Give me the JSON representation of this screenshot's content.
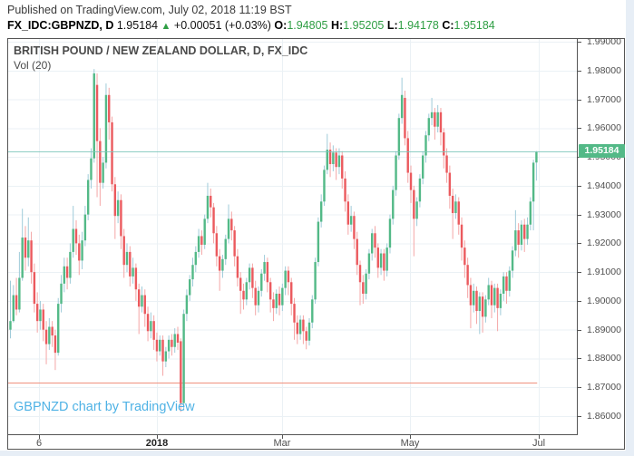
{
  "header": {
    "published_line": "Published on TradingView.com, July 02, 2018 11:19 BST",
    "symbol_title": "FX_IDC:GBPNZD, D",
    "last_price": "1.95184",
    "change_arrow": "▲",
    "change_text": "+0.00051 (+0.03%)",
    "open": {
      "label": "O:",
      "value": "1.94805"
    },
    "high": {
      "label": "H:",
      "value": "1.95205"
    },
    "low": {
      "label": "L:",
      "value": "1.94178"
    },
    "close": {
      "label": "C:",
      "value": "1.95184"
    }
  },
  "chart": {
    "title": "BRITISH POUND / NEW ZEALAND DOLLAR, D, FX_IDC",
    "indicator_label": "Vol (20)",
    "watermark": "GBPNZD chart by TradingView",
    "last_price_label": "1.95184"
  },
  "colors": {
    "up": "#53b987",
    "down": "#eb5a5e",
    "up_wick": "#9fcbd9",
    "down_wick": "#f4a6a6",
    "grid": "#ebf1f5",
    "price_line": "#7cc6ba",
    "support_line": "#f0917e",
    "label_bg": "#53b987",
    "value_green": "#2f9e44",
    "watermark_blue": "#4fb2e5"
  },
  "chart_data": {
    "type": "candlestick",
    "symbol": "GBPNZD",
    "timeframe": "D",
    "title": "BRITISH POUND / NEW ZEALAND DOLLAR, D, FX_IDC",
    "grid": true,
    "y_axis": {
      "side": "right",
      "min": 1.86,
      "max": 1.99,
      "tick_step": 0.01,
      "ticks": [
        {
          "p": 1.99,
          "t": "1.99000"
        },
        {
          "p": 1.98,
          "t": "1.98000"
        },
        {
          "p": 1.97,
          "t": "1.97000"
        },
        {
          "p": 1.96,
          "t": "1.96000"
        },
        {
          "p": 1.95,
          "t": "1.95000"
        },
        {
          "p": 1.94,
          "t": "1.94000"
        },
        {
          "p": 1.93,
          "t": "1.93000"
        },
        {
          "p": 1.92,
          "t": "1.92000"
        },
        {
          "p": 1.91,
          "t": "1.91000"
        },
        {
          "p": 1.9,
          "t": "1.90000"
        },
        {
          "p": 1.89,
          "t": "1.89000"
        },
        {
          "p": 1.88,
          "t": "1.88000"
        },
        {
          "p": 1.87,
          "t": "1.87000"
        },
        {
          "p": 1.86,
          "t": "1.86000"
        }
      ]
    },
    "x_axis": {
      "ticks": [
        {
          "label": "6",
          "i": 9.7,
          "bold": false
        },
        {
          "label": "2018",
          "i": 49.2,
          "bold": true
        },
        {
          "label": "Mar",
          "i": 91.1,
          "bold": false
        },
        {
          "label": "May",
          "i": 133.9,
          "bold": false
        },
        {
          "label": "Jul",
          "i": 177.0,
          "bold": false
        }
      ]
    },
    "levels": {
      "current_price": 1.95184,
      "support_line": {
        "price": 1.8715,
        "start_index": -0.6,
        "end_index": 176.4
      }
    },
    "candles": [
      [
        1.89,
        1.907,
        1.887,
        1.893
      ],
      [
        1.893,
        1.9055,
        1.8925,
        1.902
      ],
      [
        1.902,
        1.908,
        1.895,
        1.897
      ],
      [
        1.897,
        1.917,
        1.896,
        1.908
      ],
      [
        1.908,
        1.932,
        1.907,
        1.922
      ],
      [
        1.922,
        1.926,
        1.9105,
        1.915
      ],
      [
        1.915,
        1.929,
        1.912,
        1.921
      ],
      [
        1.921,
        1.924,
        1.906,
        1.91
      ],
      [
        1.91,
        1.913,
        1.896,
        1.899
      ],
      [
        1.899,
        1.903,
        1.889,
        1.893
      ],
      [
        1.893,
        1.9,
        1.89,
        1.897
      ],
      [
        1.897,
        1.899,
        1.886,
        1.89
      ],
      [
        1.89,
        1.893,
        1.878,
        1.885
      ],
      [
        1.885,
        1.894,
        1.883,
        1.891
      ],
      [
        1.891,
        1.893,
        1.884,
        1.888
      ],
      [
        1.888,
        1.89,
        1.876,
        1.882
      ],
      [
        1.882,
        1.901,
        1.881,
        1.899
      ],
      [
        1.899,
        1.909,
        1.896,
        1.906
      ],
      [
        1.906,
        1.915,
        1.903,
        1.912
      ],
      [
        1.912,
        1.915,
        1.904,
        1.908
      ],
      [
        1.908,
        1.92,
        1.906,
        1.917
      ],
      [
        1.917,
        1.933,
        1.915,
        1.925
      ],
      [
        1.925,
        1.928,
        1.916,
        1.92
      ],
      [
        1.92,
        1.923,
        1.909,
        1.914
      ],
      [
        1.914,
        1.924,
        1.911,
        1.921
      ],
      [
        1.921,
        1.933,
        1.919,
        1.93
      ],
      [
        1.93,
        1.944,
        1.928,
        1.942
      ],
      [
        1.942,
        1.953,
        1.939,
        1.9495
      ],
      [
        1.9495,
        1.9805,
        1.948,
        1.979
      ],
      [
        1.975,
        1.979,
        1.936,
        1.9555
      ],
      [
        1.9555,
        1.96,
        1.933,
        1.941
      ],
      [
        1.941,
        1.95,
        1.939,
        1.948
      ],
      [
        1.948,
        1.9755,
        1.946,
        1.9715
      ],
      [
        1.9715,
        1.974,
        1.956,
        1.962
      ],
      [
        1.962,
        1.964,
        1.938,
        1.9405
      ],
      [
        1.9405,
        1.943,
        1.9215,
        1.9295
      ],
      [
        1.9295,
        1.938,
        1.927,
        1.935
      ],
      [
        1.935,
        1.937,
        1.918,
        1.9225
      ],
      [
        1.9225,
        1.925,
        1.908,
        1.9125
      ],
      [
        1.9125,
        1.92,
        1.91,
        1.917
      ],
      [
        1.917,
        1.919,
        1.905,
        1.9085
      ],
      [
        1.9085,
        1.915,
        1.906,
        1.9115
      ],
      [
        1.9115,
        1.913,
        1.9,
        1.904
      ],
      [
        1.904,
        1.906,
        1.8885,
        1.898
      ],
      [
        1.898,
        1.905,
        1.896,
        1.902
      ],
      [
        1.902,
        1.904,
        1.891,
        1.8955
      ],
      [
        1.8955,
        1.898,
        1.886,
        1.8895
      ],
      [
        1.8895,
        1.896,
        1.887,
        1.893
      ],
      [
        1.893,
        1.895,
        1.883,
        1.8865
      ],
      [
        1.8865,
        1.889,
        1.879,
        1.8825
      ],
      [
        1.8825,
        1.888,
        1.881,
        1.8865
      ],
      [
        1.8865,
        1.888,
        1.874,
        1.879
      ],
      [
        1.879,
        1.884,
        1.877,
        1.8825
      ],
      [
        1.8825,
        1.888,
        1.88,
        1.8865
      ],
      [
        1.8865,
        1.8885,
        1.881,
        1.884
      ],
      [
        1.884,
        1.8905,
        1.882,
        1.8885
      ],
      [
        1.8885,
        1.891,
        1.883,
        1.8855
      ],
      [
        1.886,
        1.887,
        1.8615,
        1.8645
      ],
      [
        1.8645,
        1.897,
        1.862,
        1.8955
      ],
      [
        1.8955,
        1.904,
        1.893,
        1.902
      ],
      [
        1.902,
        1.909,
        1.9,
        1.9075
      ],
      [
        1.9075,
        1.915,
        1.905,
        1.9125
      ],
      [
        1.9125,
        1.919,
        1.91,
        1.917
      ],
      [
        1.917,
        1.925,
        1.915,
        1.9225
      ],
      [
        1.9225,
        1.9245,
        1.916,
        1.9195
      ],
      [
        1.9195,
        1.93,
        1.918,
        1.9285
      ],
      [
        1.9285,
        1.941,
        1.927,
        1.9365
      ],
      [
        1.9365,
        1.939,
        1.929,
        1.9325
      ],
      [
        1.9325,
        1.934,
        1.92,
        1.9235
      ],
      [
        1.9235,
        1.926,
        1.912,
        1.9155
      ],
      [
        1.9155,
        1.918,
        1.9035,
        1.9105
      ],
      [
        1.9105,
        1.916,
        1.908,
        1.9145
      ],
      [
        1.9145,
        1.923,
        1.9125,
        1.9215
      ],
      [
        1.9215,
        1.9335,
        1.92,
        1.9285
      ],
      [
        1.9285,
        1.931,
        1.921,
        1.9245
      ],
      [
        1.9245,
        1.926,
        1.912,
        1.9155
      ],
      [
        1.9155,
        1.918,
        1.905,
        1.908
      ],
      [
        1.908,
        1.91,
        1.8955,
        1.9035
      ],
      [
        1.9035,
        1.906,
        1.897,
        1.9005
      ],
      [
        1.9005,
        1.908,
        1.8985,
        1.9065
      ],
      [
        1.9065,
        1.913,
        1.904,
        1.9115
      ],
      [
        1.9115,
        1.913,
        1.901,
        1.9045
      ],
      [
        1.9045,
        1.907,
        1.895,
        1.8985
      ],
      [
        1.8985,
        1.905,
        1.896,
        1.9035
      ],
      [
        1.9035,
        1.911,
        1.9015,
        1.9095
      ],
      [
        1.9095,
        1.916,
        1.907,
        1.9135
      ],
      [
        1.9135,
        1.915,
        1.903,
        1.9065
      ],
      [
        1.9065,
        1.908,
        1.896,
        1.9005
      ],
      [
        1.9005,
        1.903,
        1.893,
        1.8975
      ],
      [
        1.8975,
        1.904,
        1.8955,
        1.9025
      ],
      [
        1.9025,
        1.905,
        1.895,
        1.8985
      ],
      [
        1.8985,
        1.906,
        1.8965,
        1.9045
      ],
      [
        1.9045,
        1.912,
        1.902,
        1.9105
      ],
      [
        1.9105,
        1.912,
        1.902,
        1.9065
      ],
      [
        1.9065,
        1.908,
        1.895,
        1.899
      ],
      [
        1.899,
        1.901,
        1.8865,
        1.8925
      ],
      [
        1.8925,
        1.895,
        1.885,
        1.8885
      ],
      [
        1.8885,
        1.895,
        1.8865,
        1.8935
      ],
      [
        1.8935,
        1.895,
        1.885,
        1.8895
      ],
      [
        1.8895,
        1.891,
        1.8832,
        1.8862
      ],
      [
        1.8862,
        1.894,
        1.8845,
        1.8925
      ],
      [
        1.8925,
        1.902,
        1.8905,
        1.9005
      ],
      [
        1.9005,
        1.915,
        1.899,
        1.9135
      ],
      [
        1.9135,
        1.929,
        1.912,
        1.9275
      ],
      [
        1.9275,
        1.937,
        1.9255,
        1.9345
      ],
      [
        1.9345,
        1.947,
        1.933,
        1.9455
      ],
      [
        1.9455,
        1.958,
        1.944,
        1.9525
      ],
      [
        1.9525,
        1.955,
        1.943,
        1.9475
      ],
      [
        1.9475,
        1.954,
        1.945,
        1.9515
      ],
      [
        1.9515,
        1.953,
        1.942,
        1.9465
      ],
      [
        1.9465,
        1.953,
        1.944,
        1.9505
      ],
      [
        1.9505,
        1.952,
        1.939,
        1.9425
      ],
      [
        1.9425,
        1.945,
        1.931,
        1.9345
      ],
      [
        1.9345,
        1.937,
        1.923,
        1.9265
      ],
      [
        1.9265,
        1.933,
        1.924,
        1.9295
      ],
      [
        1.9295,
        1.931,
        1.918,
        1.9215
      ],
      [
        1.9215,
        1.924,
        1.909,
        1.9125
      ],
      [
        1.9125,
        1.914,
        1.8985,
        1.9065
      ],
      [
        1.9065,
        1.909,
        1.899,
        1.9025
      ],
      [
        1.9025,
        1.911,
        1.9005,
        1.9095
      ],
      [
        1.9095,
        1.918,
        1.9075,
        1.9165
      ],
      [
        1.9165,
        1.925,
        1.914,
        1.9235
      ],
      [
        1.9235,
        1.926,
        1.915,
        1.9185
      ],
      [
        1.9185,
        1.92,
        1.908,
        1.9115
      ],
      [
        1.9115,
        1.918,
        1.909,
        1.9165
      ],
      [
        1.9165,
        1.918,
        1.907,
        1.9105
      ],
      [
        1.9105,
        1.92,
        1.9085,
        1.9185
      ],
      [
        1.9185,
        1.93,
        1.9165,
        1.9285
      ],
      [
        1.9285,
        1.94,
        1.9265,
        1.9385
      ],
      [
        1.9385,
        1.952,
        1.9365,
        1.9505
      ],
      [
        1.9505,
        1.965,
        1.949,
        1.9635
      ],
      [
        1.9635,
        1.9775,
        1.9615,
        1.9715
      ],
      [
        1.9705,
        1.973,
        1.954,
        1.9565
      ],
      [
        1.9565,
        1.959,
        1.941,
        1.9445
      ],
      [
        1.9445,
        1.947,
        1.934,
        1.9385
      ],
      [
        1.9385,
        1.94,
        1.9155,
        1.9285
      ],
      [
        1.9285,
        1.936,
        1.926,
        1.9345
      ],
      [
        1.9345,
        1.944,
        1.9325,
        1.9425
      ],
      [
        1.9425,
        1.952,
        1.9405,
        1.9505
      ],
      [
        1.9505,
        1.959,
        1.948,
        1.9575
      ],
      [
        1.9575,
        1.965,
        1.9555,
        1.9635
      ],
      [
        1.9635,
        1.9705,
        1.961,
        1.9655
      ],
      [
        1.9655,
        1.967,
        1.956,
        1.9605
      ],
      [
        1.9605,
        1.968,
        1.9585,
        1.9655
      ],
      [
        1.9655,
        1.967,
        1.954,
        1.9585
      ],
      [
        1.9585,
        1.96,
        1.946,
        1.9505
      ],
      [
        1.9505,
        1.953,
        1.941,
        1.9445
      ],
      [
        1.9445,
        1.947,
        1.932,
        1.9365
      ],
      [
        1.9365,
        1.939,
        1.9215,
        1.9305
      ],
      [
        1.9305,
        1.937,
        1.9285,
        1.9345
      ],
      [
        1.9345,
        1.936,
        1.923,
        1.9265
      ],
      [
        1.9265,
        1.929,
        1.914,
        1.9185
      ],
      [
        1.9185,
        1.921,
        1.908,
        1.9125
      ],
      [
        1.9125,
        1.915,
        1.901,
        1.9055
      ],
      [
        1.9055,
        1.908,
        1.8905,
        1.8985
      ],
      [
        1.8985,
        1.906,
        1.896,
        1.9035
      ],
      [
        1.9035,
        1.905,
        1.892,
        1.8965
      ],
      [
        1.8965,
        1.903,
        1.8885,
        1.9015
      ],
      [
        1.9015,
        1.903,
        1.889,
        1.8945
      ],
      [
        1.8945,
        1.902,
        1.8925,
        1.9005
      ],
      [
        1.9005,
        1.908,
        1.8985,
        1.9055
      ],
      [
        1.9055,
        1.907,
        1.894,
        1.8985
      ],
      [
        1.8985,
        1.906,
        1.896,
        1.9045
      ],
      [
        1.9045,
        1.906,
        1.8895,
        1.8975
      ],
      [
        1.8975,
        1.904,
        1.895,
        1.9025
      ],
      [
        1.9025,
        1.91,
        1.9,
        1.9085
      ],
      [
        1.9085,
        1.91,
        1.899,
        1.9035
      ],
      [
        1.9035,
        1.912,
        1.9015,
        1.9105
      ],
      [
        1.9105,
        1.919,
        1.908,
        1.9175
      ],
      [
        1.9175,
        1.9315,
        1.9155,
        1.9245
      ],
      [
        1.9245,
        1.927,
        1.915,
        1.9195
      ],
      [
        1.9195,
        1.928,
        1.9175,
        1.9265
      ],
      [
        1.9265,
        1.9285,
        1.917,
        1.9215
      ],
      [
        1.9215,
        1.929,
        1.9195,
        1.9265
      ],
      [
        1.9265,
        1.936,
        1.9245,
        1.9345
      ],
      [
        1.9345,
        1.949,
        1.9245,
        1.948
      ],
      [
        1.94805,
        1.95205,
        1.94178,
        1.95184
      ]
    ]
  }
}
